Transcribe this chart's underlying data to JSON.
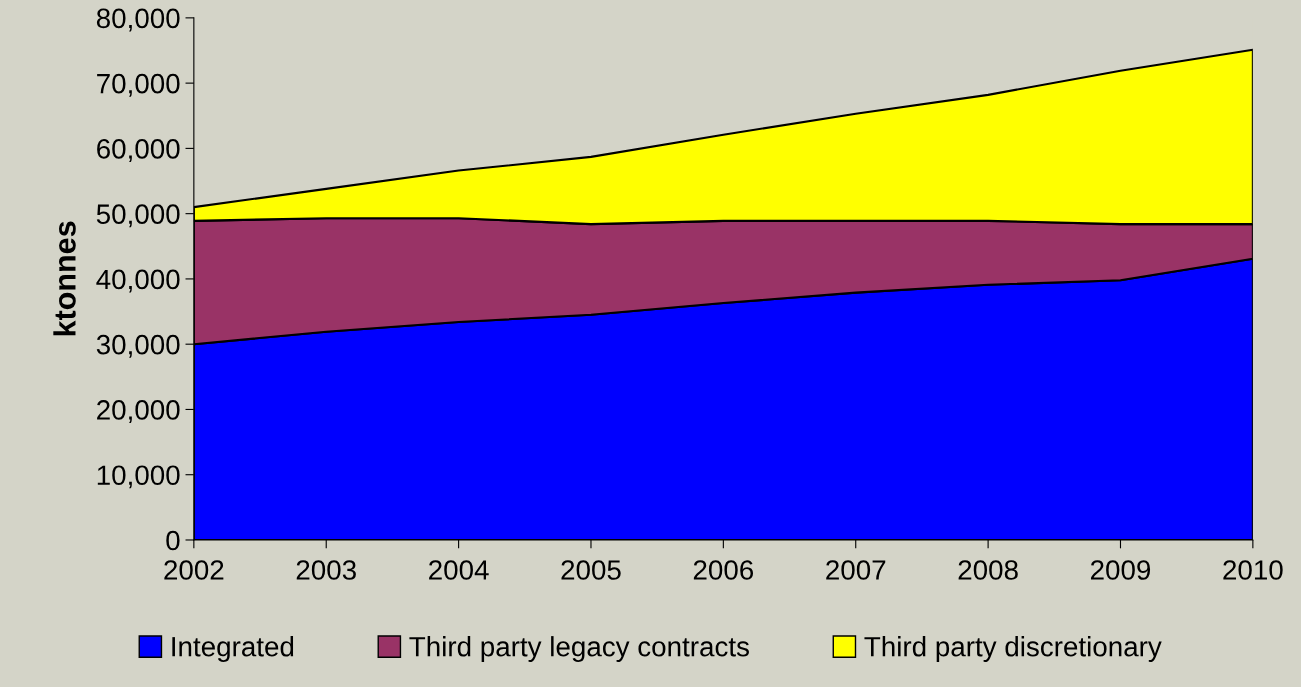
{
  "chart_data": {
    "type": "area",
    "stacked": true,
    "ylabel": "ktonnes",
    "categories": [
      "2002",
      "2003",
      "2004",
      "2005",
      "2006",
      "2007",
      "2008",
      "2009",
      "2010"
    ],
    "series": [
      {
        "name": "Integrated",
        "color": "#0000ff",
        "values": [
          30000,
          31900,
          33400,
          34500,
          36300,
          37900,
          39100,
          39800,
          43100
        ]
      },
      {
        "name": "Third party legacy contracts",
        "color": "#993366",
        "values": [
          18900,
          17400,
          15900,
          13900,
          12600,
          11000,
          9800,
          8600,
          5300
        ]
      },
      {
        "name": "Third party discretionary",
        "color": "#ffff00",
        "values": [
          2100,
          4500,
          7300,
          10300,
          13200,
          16400,
          19300,
          23500,
          26700
        ]
      }
    ],
    "ylim": [
      0,
      80000
    ],
    "yticks": [
      {
        "value": 0,
        "label": "0"
      },
      {
        "value": 10000,
        "label": "10,000"
      },
      {
        "value": 20000,
        "label": "20,000"
      },
      {
        "value": 30000,
        "label": "30,000"
      },
      {
        "value": 40000,
        "label": "40,000"
      },
      {
        "value": 50000,
        "label": "50,000"
      },
      {
        "value": 60000,
        "label": "60,000"
      },
      {
        "value": 70000,
        "label": "70,000"
      },
      {
        "value": 80000,
        "label": "80,000"
      }
    ],
    "grid": false,
    "legend": "bottom"
  }
}
